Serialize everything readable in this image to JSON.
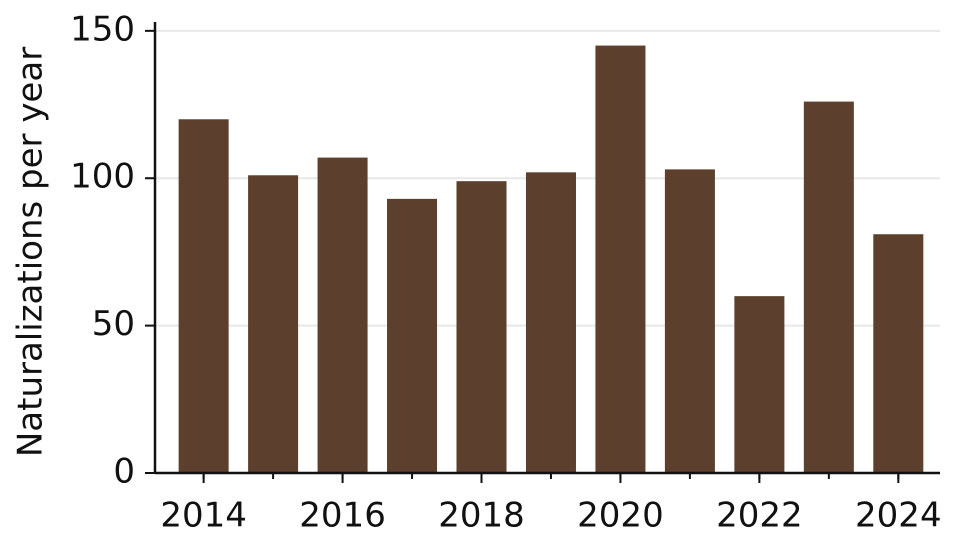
{
  "chart_data": {
    "type": "bar",
    "ylabel": "Naturalizations per year",
    "x": [
      2014,
      2015,
      2016,
      2017,
      2018,
      2019,
      2020,
      2021,
      2022,
      2023,
      2024
    ],
    "values": [
      120,
      101,
      107,
      93,
      99,
      102,
      145,
      103,
      60,
      126,
      81
    ],
    "color": "#5c3f2c",
    "xlim": [
      2013.3,
      2024.6
    ],
    "xticks": [
      2014,
      2016,
      2018,
      2020,
      2022,
      2024
    ],
    "ylim": [
      0,
      153
    ],
    "yticks": [
      0,
      50,
      100,
      150
    ],
    "grid": true
  }
}
